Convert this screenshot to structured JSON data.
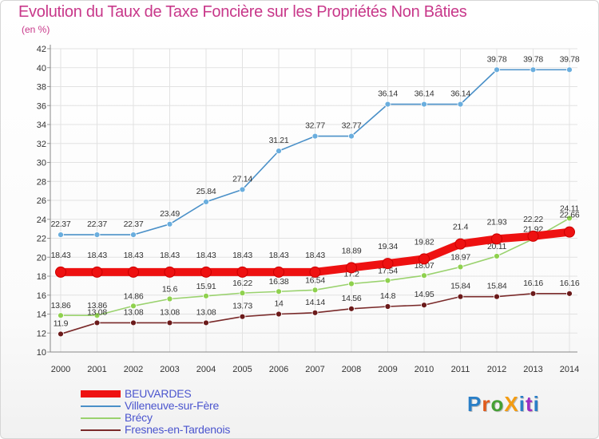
{
  "title": "Evolution du Taux de Taxe Foncière sur les Propriétés Non Bâties",
  "subtitle": "(en %)",
  "logo": {
    "text": "ProXiti",
    "colors": [
      "#2a7fc7",
      "#e05a1a",
      "#45a035",
      "#f39c12",
      "#2a7fc7",
      "#9b2ec4",
      "#2a7fc7"
    ]
  },
  "chart_data": {
    "type": "line",
    "x": [
      2000,
      2001,
      2002,
      2003,
      2004,
      2005,
      2006,
      2007,
      2008,
      2009,
      2010,
      2011,
      2012,
      2013,
      2014
    ],
    "ylim": [
      10,
      42
    ],
    "yticks": [
      10,
      12,
      14,
      16,
      18,
      20,
      22,
      24,
      26,
      28,
      30,
      32,
      34,
      36,
      38,
      40,
      42
    ],
    "grid": true,
    "series": [
      {
        "name": "Villeneuve-sur-Fère",
        "color": "#4a90c8",
        "fill": "#6aaede",
        "values": [
          22.37,
          22.37,
          22.37,
          23.49,
          25.84,
          27.14,
          31.21,
          32.77,
          32.77,
          36.14,
          36.14,
          36.14,
          39.78,
          39.78,
          39.78
        ],
        "labels": [
          "22.37",
          "22.37",
          "22.37",
          "23.49",
          "25.84",
          "27.14",
          "31.21",
          "32.77",
          "32.77",
          "36.14",
          "36.14",
          "36.14",
          "39.78",
          "39.78",
          "39.78"
        ]
      },
      {
        "name": "Brécy",
        "color": "#9ad26e",
        "fill": "#8fd14e",
        "values": [
          13.86,
          13.86,
          14.86,
          15.6,
          15.91,
          16.22,
          16.38,
          16.54,
          17.2,
          17.54,
          18.07,
          18.97,
          20.11,
          21.92,
          24.11
        ],
        "labels": [
          "13.86",
          "13.86",
          "14.86",
          "15.6",
          "15.91",
          "16.22",
          "16.38",
          "16.54",
          "17.2",
          "17.54",
          "18.07",
          "18.97",
          "20.11",
          "21.92",
          "24.11"
        ]
      },
      {
        "name": "Fresnes-en-Tardenois",
        "color": "#7a2a2a",
        "fill": "#6b1a1a",
        "values": [
          11.9,
          13.08,
          13.08,
          13.08,
          13.08,
          13.73,
          14,
          14.14,
          14.56,
          14.8,
          14.95,
          15.84,
          15.84,
          16.16,
          16.16
        ],
        "labels": [
          "11.9",
          "13.08",
          "13.08",
          "13.08",
          "13.08",
          "13.73",
          "14",
          "14.14",
          "14.56",
          "14.8",
          "14.95",
          "15.84",
          "15.84",
          "16.16",
          "16.16"
        ]
      },
      {
        "name": "BEUVARDES",
        "color": "#ee1111",
        "fill": "#ee1111",
        "values": [
          18.43,
          18.43,
          18.43,
          18.43,
          18.43,
          18.43,
          18.43,
          18.43,
          18.89,
          19.34,
          19.82,
          21.4,
          21.93,
          22.22,
          22.66
        ],
        "labels": [
          "18.43",
          "18.43",
          "18.43",
          "18.43",
          "18.43",
          "18.43",
          "18.43",
          "18.43",
          "18.89",
          "19.34",
          "19.82",
          "21.4",
          "21.93",
          "22.22",
          "22.66"
        ]
      }
    ],
    "legend": [
      "BEUVARDES",
      "Villeneuve-sur-Fère",
      "Brécy",
      "Fresnes-en-Tardenois"
    ],
    "legend_position": "bottom-left"
  }
}
